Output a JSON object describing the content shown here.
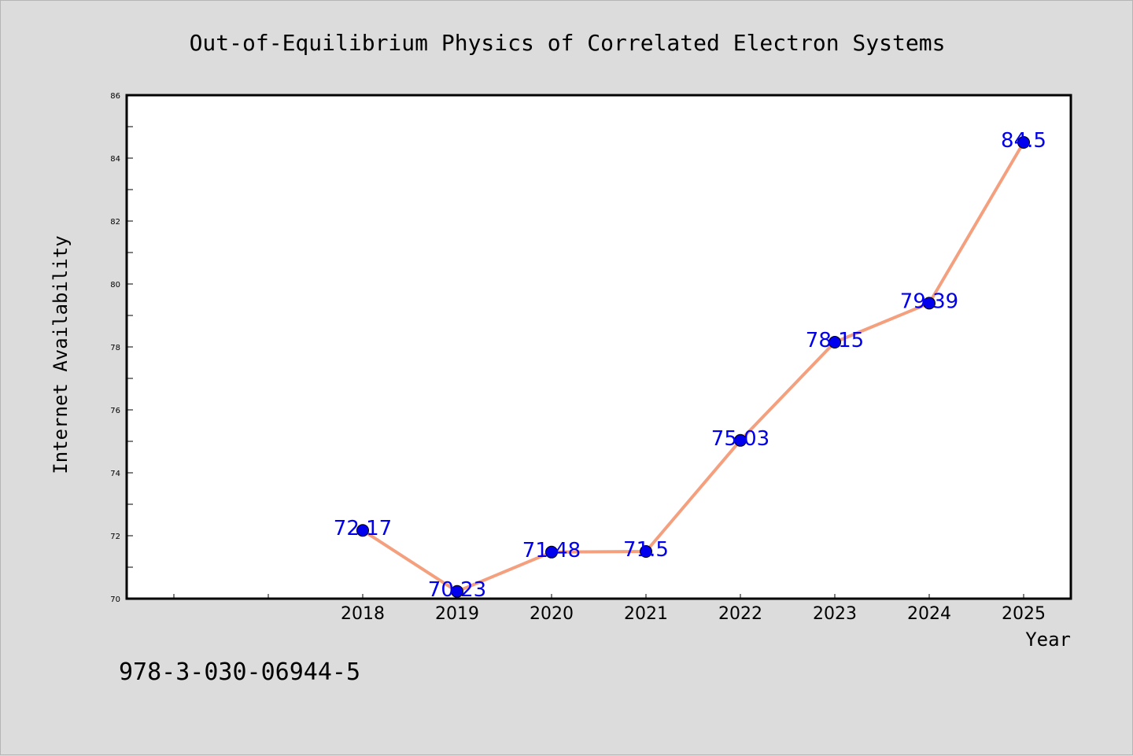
{
  "chart_data": {
    "type": "line",
    "title": "Out-of-Equilibrium Physics of Correlated Electron Systems",
    "xlabel": "Year",
    "ylabel": "Internet Availability",
    "x": [
      2018,
      2019,
      2020,
      2021,
      2022,
      2023,
      2024,
      2025
    ],
    "x_tick_labels": [
      "2018",
      "2019",
      "2020",
      "2021",
      "2022",
      "2023",
      "2024",
      "2025"
    ],
    "series": [
      {
        "values": [
          72.17,
          70.23,
          71.48,
          71.5,
          75.03,
          78.15,
          79.39,
          84.5
        ],
        "data_labels": [
          "72.17",
          "70.23",
          "71.48",
          "71.5",
          "75.03",
          "78.15",
          "79.39",
          "84.5"
        ]
      }
    ],
    "ylim": [
      70,
      86
    ],
    "y_ticks": [
      70,
      72,
      74,
      76,
      78,
      80,
      82,
      84,
      86
    ],
    "y_tick_labels": [
      "70",
      "72",
      "74",
      "76",
      "78",
      "80",
      "82",
      "84",
      "86"
    ],
    "grid": false,
    "legend": "none",
    "colors": {
      "line": "#f4a07f",
      "marker": "#0000ee",
      "data_label": "#0000ee",
      "background": "#dcdcdc",
      "plot_area": "#ffffff"
    }
  },
  "footer": {
    "isbn": "978-3-030-06944-5"
  }
}
